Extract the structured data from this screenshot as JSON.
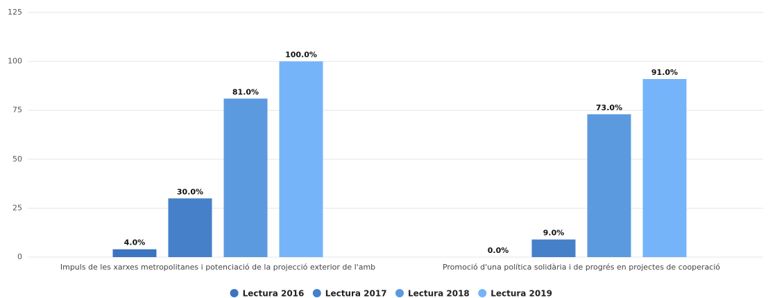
{
  "chart_data": {
    "type": "bar",
    "categories": [
      "Impuls de les xarxes metropolitanes i potenciació de la projecció exterior de l'amb",
      "Promoció d'una política solidària i de progrés en projectes de cooperació"
    ],
    "series": [
      {
        "name": "Lectura 2016",
        "color": "#3b74c0",
        "values": [
          4,
          0
        ],
        "value_labels": [
          "4.0%",
          "0.0%"
        ]
      },
      {
        "name": "Lectura 2017",
        "color": "#4580c9",
        "values": [
          30,
          9
        ],
        "value_labels": [
          "30.0%",
          "9.0%"
        ]
      },
      {
        "name": "Lectura 2018",
        "color": "#5c9ae0",
        "values": [
          81,
          73
        ],
        "value_labels": [
          "81.0%",
          "73.0%"
        ]
      },
      {
        "name": "Lectura 2019",
        "color": "#76b4fa",
        "values": [
          100,
          91
        ],
        "value_labels": [
          "100.0%",
          "91.0%"
        ]
      }
    ],
    "ylim": [
      0,
      125
    ],
    "yticks": [
      0,
      25,
      50,
      75,
      100,
      125
    ],
    "grid": true,
    "legend": "bottom"
  }
}
